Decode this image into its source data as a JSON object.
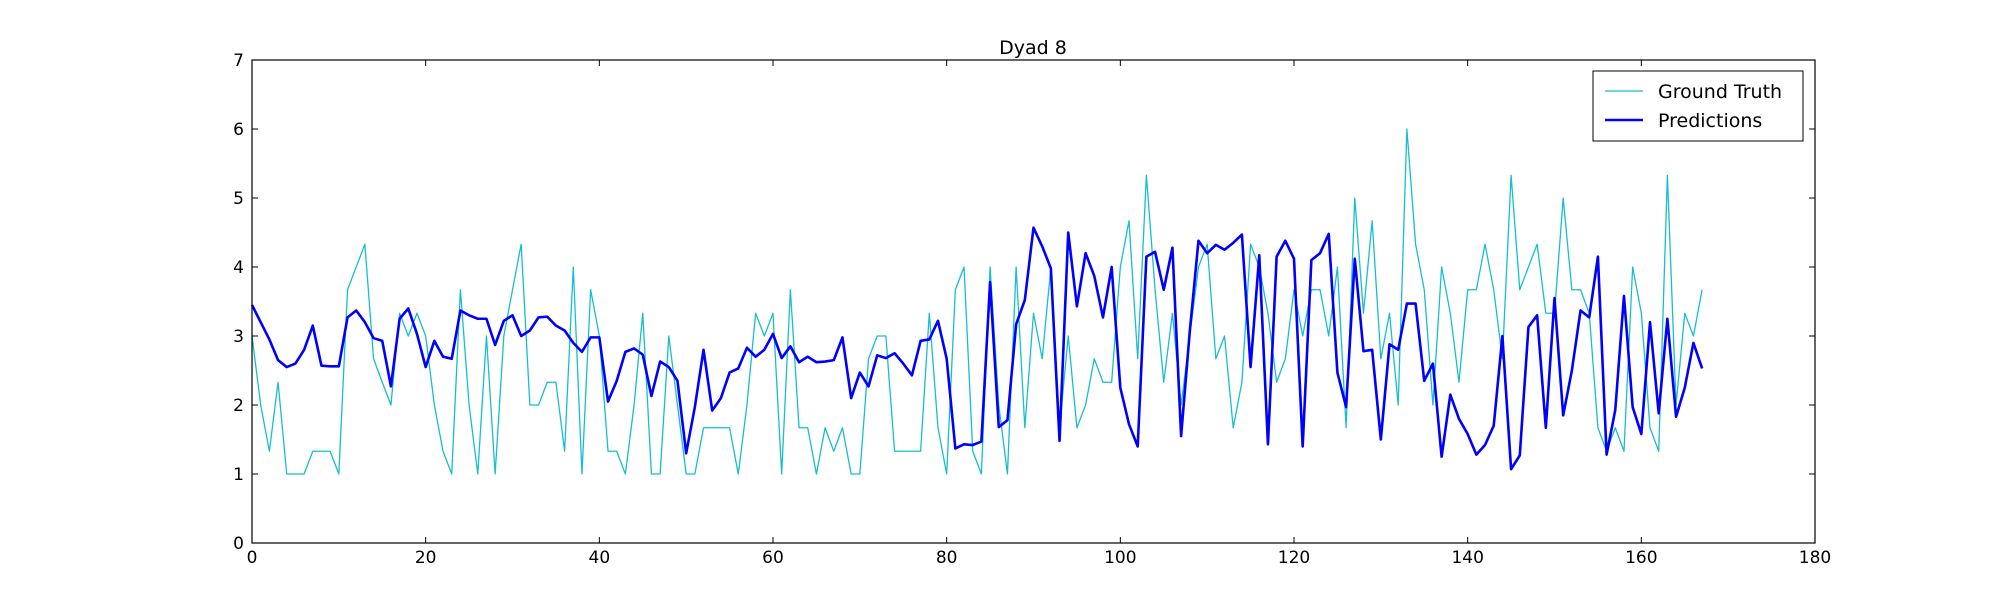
{
  "chart_data": {
    "type": "line",
    "title": "Dyad 8",
    "xlabel": "",
    "ylabel": "",
    "xlim": [
      0,
      180
    ],
    "ylim": [
      0,
      7
    ],
    "xticks": [
      0,
      20,
      40,
      60,
      80,
      100,
      120,
      140,
      160,
      180
    ],
    "yticks": [
      0,
      1,
      2,
      3,
      4,
      5,
      6,
      7
    ],
    "grid": false,
    "legend_position": "top-right",
    "series": [
      {
        "name": "Ground Truth",
        "color": "#17becf",
        "style": "thin",
        "values": [
          3.0,
          2.0,
          1.33,
          2.33,
          1.0,
          1.0,
          1.0,
          1.33,
          1.33,
          1.33,
          1.0,
          3.67,
          4.0,
          4.33,
          2.67,
          2.33,
          2.0,
          3.33,
          3.0,
          3.33,
          3.0,
          2.0,
          1.33,
          1.0,
          3.67,
          2.0,
          1.0,
          3.0,
          1.0,
          3.0,
          3.67,
          4.33,
          2.0,
          2.0,
          2.33,
          2.33,
          1.33,
          4.0,
          1.0,
          3.67,
          3.0,
          1.33,
          1.33,
          1.0,
          2.0,
          3.33,
          1.0,
          1.0,
          3.0,
          2.0,
          1.0,
          1.0,
          1.67,
          1.67,
          1.67,
          1.67,
          1.0,
          2.0,
          3.33,
          3.0,
          3.33,
          1.0,
          3.67,
          1.67,
          1.67,
          1.0,
          1.67,
          1.33,
          1.67,
          1.0,
          1.0,
          2.67,
          3.0,
          3.0,
          1.33,
          1.33,
          1.33,
          1.33,
          3.33,
          1.67,
          1.0,
          3.67,
          4.0,
          1.33,
          1.0,
          4.0,
          2.0,
          1.0,
          4.0,
          1.67,
          3.33,
          2.67,
          4.0,
          1.67,
          3.0,
          1.67,
          2.0,
          2.67,
          2.33,
          2.33,
          4.0,
          4.67,
          2.67,
          5.33,
          3.67,
          2.33,
          3.33,
          2.0,
          3.0,
          4.0,
          4.33,
          2.67,
          3.0,
          1.67,
          2.33,
          4.33,
          4.0,
          3.33,
          2.33,
          2.67,
          3.67,
          3.0,
          3.67,
          3.67,
          3.0,
          4.0,
          1.67,
          5.0,
          3.33,
          4.67,
          2.67,
          3.33,
          2.0,
          6.0,
          4.33,
          3.67,
          2.0,
          4.0,
          3.33,
          2.33,
          3.67,
          3.67,
          4.33,
          3.67,
          2.67,
          5.33,
          3.67,
          4.0,
          4.33,
          3.33,
          3.33,
          5.0,
          3.67,
          3.67,
          3.33,
          1.67,
          1.33,
          1.67,
          1.33,
          4.0,
          3.33,
          1.67,
          1.33,
          5.33,
          2.0,
          3.33,
          3.0,
          3.67
        ]
      },
      {
        "name": "Predictions",
        "color": "#0000ff",
        "style": "thick",
        "values": [
          3.45,
          3.2,
          2.95,
          2.65,
          2.55,
          2.6,
          2.8,
          3.15,
          2.57,
          2.56,
          2.56,
          3.27,
          3.37,
          3.2,
          2.97,
          2.93,
          2.27,
          3.25,
          3.4,
          3.03,
          2.55,
          2.93,
          2.7,
          2.67,
          3.37,
          3.3,
          3.25,
          3.25,
          2.87,
          3.22,
          3.3,
          3.0,
          3.08,
          3.27,
          3.28,
          3.15,
          3.08,
          2.9,
          2.77,
          2.98,
          2.98,
          2.05,
          2.35,
          2.77,
          2.82,
          2.73,
          2.13,
          2.63,
          2.55,
          2.35,
          1.3,
          1.97,
          2.8,
          1.92,
          2.1,
          2.47,
          2.53,
          2.83,
          2.7,
          2.8,
          3.03,
          2.68,
          2.85,
          2.62,
          2.7,
          2.62,
          2.63,
          2.65,
          2.98,
          2.1,
          2.47,
          2.27,
          2.72,
          2.68,
          2.75,
          2.6,
          2.43,
          2.93,
          2.95,
          3.22,
          2.67,
          1.37,
          1.43,
          1.42,
          1.47,
          3.78,
          1.68,
          1.78,
          3.17,
          3.52,
          4.57,
          4.3,
          3.98,
          1.48,
          4.5,
          3.43,
          4.2,
          3.87,
          3.27,
          4.0,
          2.25,
          1.72,
          1.4,
          4.15,
          4.22,
          3.67,
          4.28,
          1.55,
          3.07,
          4.38,
          4.2,
          4.32,
          4.25,
          4.35,
          4.47,
          2.55,
          4.17,
          1.43,
          4.15,
          4.38,
          4.12,
          1.4,
          4.1,
          4.2,
          4.48,
          2.47,
          1.97,
          4.12,
          2.78,
          2.8,
          1.5,
          2.88,
          2.8,
          3.47,
          3.47,
          2.35,
          2.6,
          1.25,
          2.15,
          1.8,
          1.58,
          1.28,
          1.42,
          1.7,
          3.0,
          1.07,
          1.27,
          3.13,
          3.3,
          1.67,
          3.55,
          1.85,
          2.5,
          3.37,
          3.27,
          4.15,
          1.28,
          1.93,
          3.58,
          1.97,
          1.58,
          3.2,
          1.88,
          3.25,
          1.83,
          2.25,
          2.9,
          2.53
        ]
      }
    ]
  }
}
